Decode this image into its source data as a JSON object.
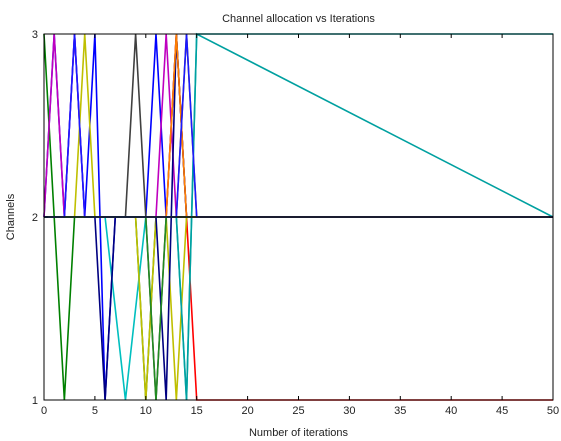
{
  "chart_data": {
    "type": "line",
    "title": "Channel allocation vs Iterations",
    "xlabel": "Number of iterations",
    "ylabel": "Channels",
    "xlim": [
      0,
      50
    ],
    "ylim": [
      1,
      3
    ],
    "xticks": [
      0,
      5,
      10,
      15,
      20,
      25,
      30,
      35,
      40,
      45,
      50
    ],
    "yticks": [
      1,
      2,
      3
    ],
    "grid": false,
    "legend": "none",
    "series": [
      {
        "color": "#0000ff",
        "x": [
          0,
          1,
          2,
          3,
          4,
          5,
          6,
          7,
          8,
          9,
          10,
          11,
          12,
          13,
          14,
          15,
          50
        ],
        "y": [
          2,
          3,
          2,
          3,
          2,
          3,
          1,
          2,
          2,
          2,
          2,
          3,
          2,
          3,
          2,
          2,
          2
        ]
      },
      {
        "color": "#008000",
        "x": [
          0,
          1,
          2,
          3,
          4,
          5,
          6,
          7,
          8,
          9,
          10,
          11,
          12,
          13,
          14,
          15,
          50
        ],
        "y": [
          3,
          2,
          1,
          2,
          2,
          2,
          2,
          2,
          2,
          2,
          1,
          2,
          2,
          2,
          2,
          2,
          2
        ]
      },
      {
        "color": "#ff0000",
        "x": [
          0,
          1,
          2,
          3,
          4,
          5,
          6,
          7,
          8,
          9,
          10,
          11,
          12,
          13,
          14,
          15,
          50
        ],
        "y": [
          2,
          2,
          2,
          2,
          2,
          2,
          2,
          2,
          2,
          2,
          2,
          2,
          2,
          3,
          2,
          1,
          1
        ]
      },
      {
        "color": "#00bfbf",
        "x": [
          0,
          1,
          2,
          3,
          4,
          5,
          6,
          7,
          8,
          9,
          10,
          11,
          12,
          13,
          14,
          15,
          50
        ],
        "y": [
          2,
          2,
          2,
          2,
          2,
          2,
          2,
          1.5,
          1,
          1.5,
          2,
          2,
          2,
          2,
          1,
          3,
          3
        ]
      },
      {
        "color": "#bf00bf",
        "x": [
          0,
          1,
          2,
          3,
          4,
          5,
          6,
          7,
          8,
          9,
          10,
          11,
          12,
          13,
          14,
          15,
          50
        ],
        "y": [
          2,
          3,
          2,
          3,
          2,
          2,
          2,
          2,
          2,
          2,
          2,
          2,
          3,
          2,
          2,
          2,
          2
        ]
      },
      {
        "color": "#bfbf00",
        "x": [
          0,
          1,
          2,
          3,
          4,
          5,
          6,
          7,
          8,
          9,
          10,
          11,
          12,
          13,
          14,
          15,
          50
        ],
        "y": [
          2,
          2,
          2,
          2,
          3,
          2,
          2,
          2,
          2,
          2,
          1,
          2,
          2,
          1,
          2,
          2,
          2
        ]
      },
      {
        "color": "#404040",
        "x": [
          0,
          1,
          2,
          3,
          4,
          5,
          6,
          7,
          8,
          9,
          10,
          11,
          12,
          13,
          14,
          15,
          50
        ],
        "y": [
          2,
          2,
          2,
          2,
          2,
          2,
          2,
          2,
          2,
          3,
          2,
          1,
          2,
          2,
          2,
          2,
          2
        ]
      },
      {
        "color": "#000080",
        "x": [
          0,
          1,
          2,
          3,
          4,
          5,
          6,
          7,
          8,
          9,
          10,
          11,
          12,
          13,
          14,
          15,
          50
        ],
        "y": [
          2,
          2,
          2,
          2,
          2,
          2,
          1,
          2,
          2,
          2,
          2,
          2,
          1,
          3,
          2,
          2,
          2
        ]
      },
      {
        "color": "#ff8000",
        "x": [
          0,
          1,
          2,
          3,
          4,
          5,
          6,
          7,
          8,
          9,
          10,
          11,
          12,
          13,
          14,
          15,
          50
        ],
        "y": [
          2,
          2,
          2,
          2,
          2,
          2,
          2,
          2,
          2,
          2,
          2,
          2,
          2,
          3,
          2,
          2,
          2
        ]
      },
      {
        "color": "#8b4513",
        "x": [
          0,
          1,
          2,
          3,
          4,
          5,
          6,
          7,
          8,
          9,
          10,
          11,
          12,
          13,
          14,
          15,
          50
        ],
        "y": [
          2,
          2,
          2,
          2,
          2,
          2,
          2,
          2,
          2,
          2,
          2,
          2,
          2,
          2,
          3,
          2,
          2
        ]
      },
      {
        "color": "#228b22",
        "x": [
          0,
          1,
          2,
          3,
          4,
          5,
          6,
          7,
          8,
          9,
          10,
          11,
          12,
          13,
          14,
          15,
          50
        ],
        "y": [
          2,
          2,
          2,
          2,
          2,
          2,
          2,
          2,
          2,
          2,
          2,
          1,
          2,
          2,
          2,
          2,
          2
        ]
      },
      {
        "color": "#00a0a0",
        "x": [
          0,
          1,
          2,
          3,
          4,
          5,
          6,
          7,
          8,
          9,
          10,
          11,
          12,
          13,
          14,
          15,
          50
        ],
        "y": [
          2,
          2,
          2,
          2,
          2,
          2,
          2,
          2,
          2,
          2,
          2,
          2,
          2,
          2,
          1,
          3,
          2
        ]
      },
      {
        "color": "#1a1aff",
        "x": [
          0,
          1,
          2,
          3,
          4,
          5,
          6,
          7,
          8,
          9,
          10,
          11,
          12,
          13,
          14,
          15,
          50
        ],
        "y": [
          2,
          2,
          2,
          3,
          2,
          2,
          2,
          2,
          2,
          2,
          2,
          2,
          2,
          2,
          3,
          2,
          2
        ]
      },
      {
        "color": "#101010",
        "x": [
          0,
          1,
          2,
          3,
          4,
          5,
          6,
          7,
          8,
          9,
          10,
          11,
          12,
          13,
          14,
          15,
          50
        ],
        "y": [
          2,
          2,
          2,
          2,
          2,
          2,
          2,
          2,
          2,
          2,
          2,
          2,
          2,
          2,
          2,
          2,
          2
        ]
      }
    ]
  }
}
